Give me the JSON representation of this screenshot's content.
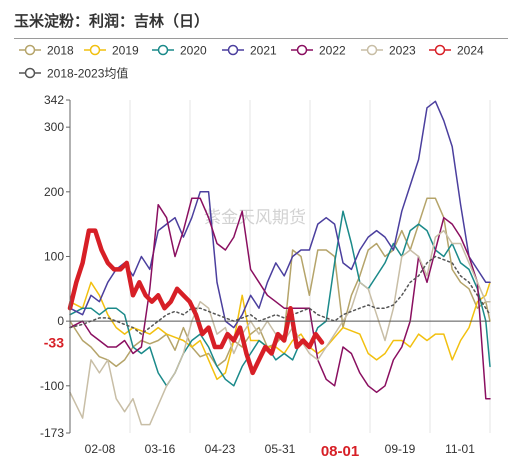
{
  "title": "玉米淀粉：利润：吉林（日）",
  "watermark": "紫金天风期货",
  "chart_data": {
    "type": "line",
    "title": "玉米淀粉：利润：吉林（日）",
    "xlabel": "",
    "ylabel": "",
    "x_ticks": [
      "02-08",
      "03-16",
      "04-23",
      "05-31",
      "08-01",
      "09-19",
      "11-01"
    ],
    "highlight_x_tick": "08-01",
    "y_ticks": [
      342,
      300,
      200,
      100,
      0,
      -100,
      -173
    ],
    "ylim": [
      -173,
      342
    ],
    "x_domain": [
      0,
      100
    ],
    "grid": {
      "vertical": true,
      "horizontal": false
    },
    "legend_position": "top",
    "current_value_label": "-33",
    "series": [
      {
        "name": "2018",
        "color": "#b5a46a",
        "width": 1.5,
        "x": [
          0,
          3,
          5,
          7,
          9,
          11,
          13,
          15,
          17,
          19,
          21,
          23,
          25,
          27,
          29,
          31,
          33,
          35,
          37,
          39,
          41,
          43,
          45,
          47,
          49,
          51,
          53,
          55,
          57,
          59,
          61,
          63,
          65,
          67,
          69,
          71,
          73,
          75,
          77,
          79,
          81,
          83,
          85,
          87,
          89,
          91,
          93,
          95,
          97,
          99,
          100
        ],
        "y": [
          0,
          -30,
          -40,
          -55,
          -60,
          -70,
          -60,
          -40,
          -30,
          -35,
          -30,
          -20,
          -45,
          -10,
          -40,
          -55,
          -50,
          -70,
          -60,
          -30,
          -40,
          -20,
          -10,
          -40,
          -35,
          -20,
          110,
          100,
          40,
          110,
          110,
          100,
          -10,
          40,
          70,
          110,
          120,
          100,
          110,
          140,
          110,
          150,
          190,
          190,
          160,
          80,
          60,
          50,
          20,
          30,
          0
        ]
      },
      {
        "name": "2019",
        "color": "#f2c00f",
        "width": 1.5,
        "x": [
          0,
          3,
          5,
          7,
          9,
          11,
          13,
          15,
          17,
          19,
          21,
          23,
          25,
          27,
          29,
          31,
          33,
          35,
          37,
          39,
          41,
          43,
          45,
          47,
          49,
          51,
          53,
          55,
          57,
          59,
          61,
          63,
          65,
          67,
          69,
          71,
          73,
          75,
          77,
          79,
          81,
          83,
          85,
          87,
          89,
          91,
          93,
          95,
          97,
          99,
          100
        ],
        "y": [
          30,
          20,
          60,
          40,
          10,
          -10,
          -20,
          -10,
          -15,
          -20,
          -10,
          -20,
          -25,
          -30,
          -40,
          -30,
          -60,
          -90,
          -80,
          -30,
          40,
          -30,
          -30,
          -40,
          -40,
          -50,
          -30,
          -20,
          -40,
          -50,
          -40,
          -25,
          -10,
          -15,
          -20,
          -50,
          -60,
          -50,
          -30,
          -30,
          -40,
          -20,
          -30,
          -20,
          -20,
          -60,
          -30,
          -10,
          30,
          40,
          60
        ]
      },
      {
        "name": "2020",
        "color": "#1b8a8a",
        "width": 1.5,
        "x": [
          0,
          3,
          5,
          7,
          9,
          11,
          13,
          15,
          17,
          19,
          21,
          23,
          25,
          27,
          29,
          31,
          33,
          35,
          37,
          39,
          41,
          43,
          45,
          47,
          49,
          51,
          53,
          55,
          57,
          59,
          61,
          63,
          65,
          67,
          69,
          71,
          73,
          75,
          77,
          79,
          81,
          83,
          85,
          87,
          89,
          91,
          93,
          95,
          97,
          99,
          100
        ],
        "y": [
          10,
          20,
          20,
          10,
          20,
          20,
          10,
          -40,
          -50,
          -40,
          -80,
          -100,
          -80,
          -50,
          -30,
          -20,
          -40,
          -70,
          -90,
          -100,
          -70,
          -50,
          -30,
          -40,
          -60,
          -50,
          -60,
          -30,
          -40,
          -10,
          0,
          90,
          170,
          120,
          60,
          50,
          70,
          90,
          120,
          100,
          140,
          150,
          140,
          110,
          100,
          120,
          90,
          80,
          50,
          0,
          -70
        ]
      },
      {
        "name": "2021",
        "color": "#4b3f9e",
        "width": 1.5,
        "x": [
          0,
          3,
          5,
          7,
          9,
          11,
          13,
          15,
          17,
          19,
          21,
          23,
          25,
          27,
          29,
          31,
          33,
          35,
          37,
          39,
          41,
          43,
          45,
          47,
          49,
          51,
          53,
          55,
          57,
          59,
          61,
          63,
          65,
          67,
          69,
          71,
          73,
          75,
          77,
          79,
          81,
          83,
          85,
          87,
          89,
          91,
          93,
          95,
          97,
          99,
          100
        ],
        "y": [
          20,
          10,
          40,
          30,
          60,
          80,
          90,
          70,
          100,
          80,
          140,
          150,
          160,
          130,
          160,
          200,
          200,
          60,
          0,
          -10,
          10,
          40,
          20,
          60,
          90,
          70,
          100,
          110,
          110,
          150,
          160,
          150,
          90,
          80,
          110,
          130,
          140,
          130,
          110,
          170,
          210,
          250,
          330,
          340,
          310,
          270,
          180,
          100,
          80,
          60,
          60
        ]
      },
      {
        "name": "2022",
        "color": "#8a0f60",
        "width": 1.5,
        "x": [
          0,
          3,
          5,
          7,
          9,
          11,
          13,
          15,
          17,
          19,
          21,
          23,
          25,
          27,
          29,
          31,
          33,
          35,
          37,
          39,
          41,
          43,
          45,
          47,
          49,
          51,
          53,
          55,
          57,
          59,
          61,
          63,
          65,
          67,
          69,
          71,
          73,
          75,
          77,
          79,
          81,
          83,
          85,
          87,
          89,
          91,
          93,
          95,
          97,
          99,
          100
        ],
        "y": [
          -10,
          0,
          -20,
          -30,
          -40,
          -40,
          -30,
          -50,
          -40,
          50,
          180,
          160,
          100,
          140,
          190,
          190,
          160,
          120,
          110,
          130,
          170,
          80,
          60,
          40,
          30,
          20,
          20,
          20,
          20,
          -60,
          -90,
          -100,
          -40,
          -50,
          -80,
          -100,
          -110,
          -100,
          -60,
          -40,
          0,
          100,
          60,
          110,
          160,
          150,
          130,
          100,
          60,
          -120,
          -120
        ]
      },
      {
        "name": "2023",
        "color": "#c8bea6",
        "width": 1.5,
        "x": [
          0,
          3,
          5,
          7,
          9,
          11,
          13,
          15,
          17,
          19,
          21,
          23,
          25,
          27,
          29,
          31,
          33,
          35,
          37,
          39,
          41,
          43,
          45,
          47,
          49,
          51,
          53,
          55,
          57,
          59,
          61,
          63,
          65,
          67,
          69,
          71,
          73,
          75,
          77,
          79,
          81,
          83,
          85,
          87,
          89,
          91,
          93,
          95,
          97,
          99,
          100
        ],
        "y": [
          -110,
          -150,
          -60,
          -80,
          -60,
          -120,
          -140,
          -120,
          -160,
          -160,
          -130,
          -100,
          -80,
          -50,
          0,
          30,
          20,
          -20,
          -10,
          -50,
          -20,
          0,
          -20,
          0,
          -20,
          -30,
          -10,
          -30,
          -50,
          -60,
          -40,
          -20,
          0,
          20,
          60,
          50,
          10,
          -30,
          20,
          100,
          110,
          100,
          70,
          130,
          140,
          120,
          120,
          90,
          60,
          30,
          30
        ]
      },
      {
        "name": "2024",
        "color": "#d71f26",
        "width": 4.5,
        "x": [
          0,
          1.5,
          3,
          4.5,
          6,
          7.5,
          9,
          10.5,
          12,
          13.5,
          15,
          16.5,
          18,
          19.5,
          21,
          22.5,
          24,
          25.5,
          27,
          28.5,
          30,
          31.5,
          33,
          34.5,
          36,
          37.5,
          39,
          40.5,
          42,
          43.5,
          45,
          46.5,
          48,
          49.5,
          51,
          52.5,
          54,
          55.5,
          57,
          58.5,
          60
        ],
        "y": [
          20,
          60,
          90,
          140,
          140,
          110,
          90,
          80,
          80,
          90,
          40,
          60,
          40,
          30,
          40,
          20,
          30,
          50,
          40,
          30,
          10,
          -20,
          -10,
          -40,
          -40,
          -20,
          -30,
          -10,
          -50,
          -80,
          -60,
          -40,
          -50,
          -20,
          -30,
          20,
          -40,
          -30,
          -40,
          -20,
          -33
        ]
      },
      {
        "name": "2018-2023均值",
        "color": "#555555",
        "width": 1.5,
        "dashed": true,
        "x": [
          0,
          3,
          5,
          7,
          9,
          11,
          13,
          15,
          17,
          19,
          21,
          23,
          25,
          27,
          29,
          31,
          33,
          35,
          37,
          39,
          41,
          43,
          45,
          47,
          49,
          51,
          53,
          55,
          57,
          59,
          61,
          63,
          65,
          67,
          69,
          71,
          73,
          75,
          77,
          79,
          81,
          83,
          85,
          87,
          89,
          91,
          93,
          95,
          97,
          99,
          100
        ],
        "y": [
          -10,
          -5,
          0,
          5,
          5,
          0,
          -5,
          -10,
          -20,
          -10,
          0,
          10,
          15,
          10,
          20,
          20,
          15,
          10,
          5,
          0,
          5,
          10,
          0,
          5,
          10,
          5,
          10,
          15,
          20,
          10,
          5,
          0,
          10,
          15,
          20,
          25,
          20,
          20,
          25,
          40,
          60,
          70,
          90,
          100,
          95,
          90,
          70,
          60,
          40,
          20,
          10
        ]
      }
    ]
  }
}
